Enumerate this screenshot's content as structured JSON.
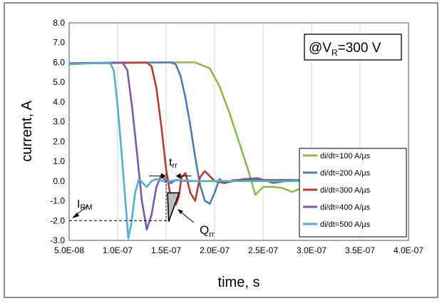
{
  "chart_data": {
    "type": "line",
    "xlabel": "time, s",
    "ylabel": "current, A",
    "xlim": [
      5e-08,
      4e-07
    ],
    "ylim": [
      -3.0,
      8.0
    ],
    "x_ticks": [
      {
        "value": 5e-08,
        "label": "5.0E-08"
      },
      {
        "value": 1e-07,
        "label": "1.0E-07"
      },
      {
        "value": 1.5e-07,
        "label": "1.5E-07"
      },
      {
        "value": 2e-07,
        "label": "2.0E-07"
      },
      {
        "value": 2.5e-07,
        "label": "2.5E-07"
      },
      {
        "value": 3e-07,
        "label": "3.0E-07"
      },
      {
        "value": 3.5e-07,
        "label": "3.5E-07"
      },
      {
        "value": 4e-07,
        "label": "4.0E-07"
      }
    ],
    "y_ticks": [
      {
        "value": 8.0,
        "label": "8.0"
      },
      {
        "value": 7.0,
        "label": "7.0"
      },
      {
        "value": 6.0,
        "label": "6.0"
      },
      {
        "value": 5.0,
        "label": "5.0"
      },
      {
        "value": 4.0,
        "label": "4.0"
      },
      {
        "value": 3.0,
        "label": "3.0"
      },
      {
        "value": 2.0,
        "label": "2.0"
      },
      {
        "value": 1.0,
        "label": "1.0"
      },
      {
        "value": 0.0,
        "label": "0.0"
      },
      {
        "value": -1.0,
        "label": "-1.0"
      },
      {
        "value": -2.0,
        "label": "-2.0"
      },
      {
        "value": -3.0,
        "label": "-3.0"
      }
    ],
    "grid": "vertical",
    "legend_position": "right",
    "annotations": {
      "condition_box": {
        "pre": "@V",
        "sub": "R",
        "post": "=300 V"
      },
      "irm": {
        "main": "I",
        "sub": "RM",
        "level": -2.0
      },
      "trr": {
        "main": "t",
        "sub": "rr",
        "x_start": 1.5e-07,
        "x_end": 1.6e-07,
        "y": 0.4
      },
      "qrr": {
        "main": "Q",
        "sub": "rr"
      }
    },
    "series": [
      {
        "name": "di/dt=100 A/µs",
        "color": "#8fbc45",
        "x": [
          5e-08,
          1.5e-07,
          1.8e-07,
          1.95e-07,
          2.05e-07,
          2.15e-07,
          2.25e-07,
          2.35e-07,
          2.42e-07,
          2.5e-07,
          2.6e-07,
          2.7e-07,
          2.8e-07,
          2.9e-07,
          3e-07
        ],
        "y": [
          5.95,
          6.0,
          6.0,
          5.7,
          4.8,
          3.5,
          2.0,
          0.5,
          -0.7,
          -0.3,
          -0.3,
          -0.35,
          -0.55,
          -0.35,
          -0.45
        ]
      },
      {
        "name": "di/dt=200 A/µs",
        "color": "#4a7ebb",
        "x": [
          5e-08,
          1.5e-07,
          1.55e-07,
          1.6e-07,
          1.65e-07,
          1.7e-07,
          1.75e-07,
          1.8e-07,
          1.85e-07,
          1.9e-07,
          1.95e-07,
          2e-07,
          2.05e-07,
          2.1e-07,
          2.2e-07,
          2.3e-07,
          2.45e-07,
          2.6e-07,
          2.8e-07,
          3e-07
        ],
        "y": [
          5.95,
          6.0,
          6.0,
          5.9,
          5.3,
          4.2,
          2.8,
          1.2,
          -0.2,
          -1.0,
          -1.15,
          -0.6,
          0.1,
          -0.1,
          0.0,
          0.1,
          0.15,
          -0.1,
          0.05,
          0.05
        ]
      },
      {
        "name": "di/dt=300 A/µs",
        "color": "#c0392b",
        "x": [
          5e-08,
          1.3e-07,
          1.35e-07,
          1.4e-07,
          1.45e-07,
          1.5e-07,
          1.55e-07,
          1.6e-07,
          1.63e-07,
          1.66e-07,
          1.7e-07,
          1.75e-07,
          1.8e-07,
          1.85e-07,
          1.9e-07,
          2e-07,
          2.1e-07,
          2.2e-07,
          2.5e-07,
          2.8e-07
        ],
        "y": [
          5.95,
          6.0,
          5.8,
          4.7,
          2.8,
          0.6,
          -0.9,
          -1.2,
          -0.8,
          0.2,
          0.4,
          -0.6,
          -1.0,
          0.2,
          0.5,
          0.0,
          -0.1,
          0.05,
          0.05,
          0.05
        ]
      },
      {
        "name": "di/dt=400 A/µs",
        "color": "#7e57b0",
        "x": [
          5e-08,
          1.05e-07,
          1.1e-07,
          1.15e-07,
          1.2e-07,
          1.25e-07,
          1.3e-07,
          1.35e-07,
          1.4e-07,
          1.45e-07,
          1.5e-07,
          1.55e-07,
          1.6e-07,
          1.7e-07,
          1.8e-07,
          2e-07,
          2.3e-07,
          2.8e-07
        ],
        "y": [
          5.95,
          6.0,
          5.6,
          3.7,
          1.4,
          -1.0,
          -2.45,
          -1.7,
          -0.3,
          0.3,
          0.0,
          -0.1,
          0.05,
          0.0,
          0.0,
          0.0,
          0.0,
          0.0
        ]
      },
      {
        "name": "di/dt=500 A/µs",
        "color": "#4bb3d6",
        "x": [
          5e-08,
          9.2e-08,
          9.6e-08,
          1e-07,
          1.04e-07,
          1.08e-07,
          1.11e-07,
          1.14e-07,
          1.18e-07,
          1.22e-07,
          1.26e-07,
          1.3e-07,
          1.35e-07,
          1.4e-07,
          1.5e-07,
          1.6e-07,
          1.8e-07,
          2.1e-07,
          2.5e-07,
          2.9e-07
        ],
        "y": [
          5.9,
          6.0,
          5.6,
          3.8,
          1.5,
          -1.0,
          -2.9,
          -2.2,
          -0.6,
          0.1,
          -0.1,
          -0.3,
          0.0,
          0.1,
          -0.05,
          0.05,
          0.0,
          0.0,
          0.0,
          0.0
        ]
      }
    ]
  }
}
